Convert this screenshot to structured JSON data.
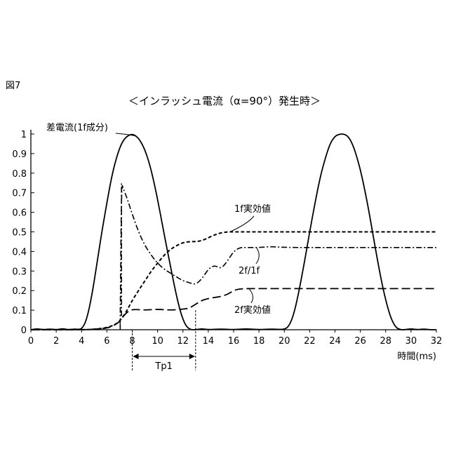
{
  "figure_label": "図7",
  "chart_data": {
    "type": "line",
    "title": "＜インラッシュ電流（α=90°）発生時＞",
    "xlabel": "時間(ms)",
    "ylabel": "",
    "xlim": [
      0,
      32
    ],
    "ylim": [
      0,
      1
    ],
    "xticks": [
      0,
      2,
      4,
      6,
      8,
      10,
      12,
      14,
      16,
      18,
      20,
      22,
      24,
      26,
      28,
      30,
      32
    ],
    "yticks": [
      0,
      0.1,
      0.2,
      0.3,
      0.4,
      0.5,
      0.6,
      0.7,
      0.8,
      0.9,
      1
    ],
    "ytick_labels": [
      "0",
      "0.1",
      "0.2",
      "0.3",
      "0.4",
      "0.5",
      "0.6",
      "0.7",
      "0.8",
      "0.9",
      "1"
    ],
    "grid": false,
    "series": [
      {
        "name": "差電流(1f成分)",
        "style": "solid",
        "x": [
          0,
          0.5,
          1,
          1.5,
          2,
          2.5,
          3,
          3.5,
          4,
          4.4,
          4.8,
          5.2,
          5.6,
          6,
          6.4,
          6.8,
          7.2,
          7.6,
          8,
          8.3,
          8.6,
          9,
          9.4,
          9.8,
          10.2,
          10.6,
          11,
          11.4,
          11.8,
          12.2,
          12.6,
          13,
          13.5,
          14,
          15,
          16,
          17,
          18,
          19,
          20,
          20.4,
          20.8,
          21.2,
          21.6,
          22,
          22.4,
          22.8,
          23.2,
          23.6,
          24,
          24.4,
          24.7,
          25,
          25.3,
          25.6,
          26,
          26.4,
          26.8,
          27.2,
          27.6,
          28,
          28.4,
          28.8,
          29.2,
          29.5,
          30,
          30.5,
          31,
          31.5,
          32
        ],
        "y": [
          0,
          0.005,
          0,
          0.004,
          0,
          0.006,
          0,
          0.004,
          0,
          0.05,
          0.17,
          0.33,
          0.5,
          0.65,
          0.79,
          0.89,
          0.96,
          0.99,
          1.0,
          0.99,
          0.97,
          0.92,
          0.84,
          0.73,
          0.6,
          0.46,
          0.33,
          0.2,
          0.09,
          0.02,
          0,
          0,
          0.005,
          0,
          0.004,
          0,
          0.005,
          0,
          0.004,
          0,
          0.02,
          0.09,
          0.21,
          0.35,
          0.5,
          0.64,
          0.77,
          0.87,
          0.95,
          0.99,
          1.0,
          1.0,
          0.99,
          0.96,
          0.91,
          0.82,
          0.7,
          0.56,
          0.41,
          0.27,
          0.15,
          0.06,
          0.01,
          0,
          0,
          0.005,
          0,
          0.004,
          0,
          0
        ]
      },
      {
        "name": "1f実効値",
        "style": "dashed",
        "x": [
          0,
          4,
          5,
          6,
          6.8,
          7.2,
          7.6,
          8,
          8.5,
          9,
          9.5,
          10,
          10.5,
          11,
          11.5,
          12,
          12.5,
          13,
          13.5,
          14,
          14.5,
          15,
          15.5,
          16,
          18,
          20,
          24,
          28,
          32
        ],
        "y": [
          0,
          0,
          0.002,
          0.01,
          0.03,
          0.06,
          0.1,
          0.15,
          0.2,
          0.25,
          0.3,
          0.34,
          0.38,
          0.41,
          0.43,
          0.445,
          0.45,
          0.45,
          0.455,
          0.47,
          0.485,
          0.495,
          0.5,
          0.5,
          0.5,
          0.5,
          0.5,
          0.5,
          0.5
        ]
      },
      {
        "name": "2f/1f",
        "style": "dashdot",
        "x": [
          7.05,
          7.15,
          7.3,
          7.6,
          8,
          8.5,
          9,
          9.5,
          10,
          10.5,
          11,
          11.5,
          12,
          12.5,
          13,
          13.5,
          14,
          14.5,
          15,
          15.5,
          16,
          16.5,
          17,
          18,
          19,
          20,
          24,
          28,
          32
        ],
        "y": [
          0.03,
          0.75,
          0.72,
          0.67,
          0.59,
          0.5,
          0.43,
          0.38,
          0.34,
          0.31,
          0.29,
          0.27,
          0.25,
          0.24,
          0.23,
          0.26,
          0.31,
          0.33,
          0.31,
          0.35,
          0.4,
          0.42,
          0.42,
          0.42,
          0.425,
          0.42,
          0.42,
          0.42,
          0.42
        ]
      },
      {
        "name": "2f実効値",
        "style": "longdash",
        "x": [
          0,
          4,
          5,
          6,
          6.5,
          7,
          7.3,
          7.6,
          8,
          9,
          10,
          11,
          12,
          12.5,
          13,
          13.5,
          14,
          14.5,
          15,
          15.5,
          16,
          16.5,
          18,
          20,
          24,
          28,
          32
        ],
        "y": [
          0,
          0,
          0.002,
          0.008,
          0.02,
          0.04,
          0.07,
          0.09,
          0.105,
          0.1,
          0.105,
          0.1,
          0.105,
          0.11,
          0.13,
          0.15,
          0.16,
          0.165,
          0.17,
          0.18,
          0.2,
          0.21,
          0.21,
          0.21,
          0.21,
          0.21,
          0.21
        ]
      }
    ],
    "annotations": [
      {
        "text": "差電流(1f成分)",
        "points_to": [
          8.2,
          0.99
        ]
      },
      {
        "text": "1f実効値",
        "points_to": [
          15.7,
          0.5
        ]
      },
      {
        "text": "2f/1f",
        "points_to": [
          17.8,
          0.42
        ]
      },
      {
        "text": "2f実効値",
        "points_to": [
          17.2,
          0.21
        ]
      },
      {
        "text": "Tp1",
        "span": [
          8,
          13
        ]
      }
    ]
  }
}
